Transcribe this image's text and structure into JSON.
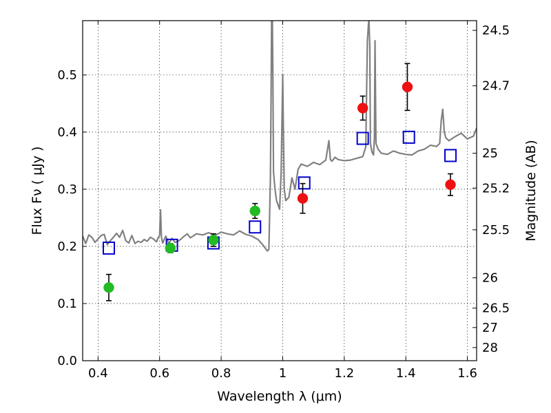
{
  "chart_data": {
    "type": "scatter",
    "xlabel": "Wavelength  λ (μm)",
    "ylabel": "Flux  Fν  ( μJy )",
    "ylabel_right": "Magnitude (AB)",
    "xlim": [
      0.35,
      1.63
    ],
    "ylim": [
      0.0,
      0.595
    ],
    "grid": true,
    "x_ticks": [
      0.4,
      0.6,
      0.8,
      1.0,
      1.2,
      1.4,
      1.6
    ],
    "x_tick_labels": [
      "0.4",
      "0.6",
      "0.8",
      "1",
      "1.2",
      "1.4",
      "1.6"
    ],
    "y_ticks": [
      0.0,
      0.1,
      0.2,
      0.3,
      0.4,
      0.5
    ],
    "y_tick_labels": [
      "0.0",
      "0.1",
      "0.2",
      "0.3",
      "0.4",
      "0.5"
    ],
    "right_ticks": [
      {
        "label": "24.5",
        "flux": 0.578
      },
      {
        "label": "24.7",
        "flux": 0.481
      },
      {
        "label": "25",
        "flux": 0.363
      },
      {
        "label": "25.2",
        "flux": 0.302
      },
      {
        "label": "25.5",
        "flux": 0.229
      },
      {
        "label": "26",
        "flux": 0.145
      },
      {
        "label": "26.5",
        "flux": 0.092
      },
      {
        "label": "27",
        "flux": 0.058
      },
      {
        "label": "28",
        "flux": 0.023
      }
    ],
    "series": [
      {
        "marker": "square-open",
        "color": "#0000cc",
        "x": [
          0.435,
          0.64,
          0.775,
          0.91,
          1.07,
          1.26,
          1.41,
          1.545
        ],
        "y": [
          0.197,
          0.202,
          0.206,
          0.234,
          0.311,
          0.389,
          0.391,
          0.359
        ]
      },
      {
        "marker": "circle",
        "color": "#22bb22",
        "x": [
          0.435,
          0.635,
          0.775,
          0.91
        ],
        "y": [
          0.128,
          0.197,
          0.211,
          0.262
        ],
        "err": [
          0.023,
          0.008,
          0.011,
          0.013
        ]
      },
      {
        "marker": "circle",
        "color": "#ee1111",
        "x": [
          1.065,
          1.26,
          1.405,
          1.545
        ],
        "y": [
          0.284,
          0.442,
          0.479,
          0.308
        ],
        "err": [
          0.026,
          0.021,
          0.041,
          0.019
        ]
      },
      {
        "type": "line",
        "color": "#808080",
        "x": [
          0.35,
          0.36,
          0.37,
          0.38,
          0.39,
          0.4,
          0.41,
          0.42,
          0.43,
          0.44,
          0.45,
          0.46,
          0.47,
          0.48,
          0.49,
          0.5,
          0.51,
          0.52,
          0.53,
          0.54,
          0.55,
          0.56,
          0.57,
          0.58,
          0.59,
          0.595,
          0.6,
          0.603,
          0.606,
          0.61,
          0.62,
          0.63,
          0.64,
          0.65,
          0.66,
          0.67,
          0.68,
          0.69,
          0.7,
          0.72,
          0.74,
          0.76,
          0.78,
          0.8,
          0.82,
          0.84,
          0.86,
          0.88,
          0.9,
          0.92,
          0.935,
          0.95,
          0.955,
          0.96,
          0.962,
          0.964,
          0.966,
          0.968,
          0.97,
          0.975,
          0.98,
          0.99,
          0.995,
          1.0,
          1.002,
          1.005,
          1.01,
          1.02,
          1.03,
          1.04,
          1.05,
          1.06,
          1.08,
          1.1,
          1.12,
          1.14,
          1.15,
          1.155,
          1.16,
          1.17,
          1.18,
          1.2,
          1.22,
          1.24,
          1.26,
          1.27,
          1.275,
          1.28,
          1.283,
          1.285,
          1.29,
          1.295,
          1.298,
          1.3,
          1.303,
          1.31,
          1.32,
          1.34,
          1.36,
          1.38,
          1.4,
          1.42,
          1.44,
          1.46,
          1.48,
          1.5,
          1.51,
          1.515,
          1.52,
          1.525,
          1.53,
          1.54,
          1.56,
          1.58,
          1.6,
          1.62,
          1.63
        ],
        "y": [
          0.218,
          0.205,
          0.22,
          0.216,
          0.207,
          0.213,
          0.219,
          0.221,
          0.203,
          0.21,
          0.216,
          0.223,
          0.216,
          0.228,
          0.21,
          0.206,
          0.219,
          0.205,
          0.209,
          0.207,
          0.212,
          0.209,
          0.216,
          0.213,
          0.208,
          0.215,
          0.219,
          0.264,
          0.216,
          0.206,
          0.218,
          0.205,
          0.214,
          0.207,
          0.209,
          0.213,
          0.218,
          0.222,
          0.215,
          0.222,
          0.22,
          0.224,
          0.219,
          0.225,
          0.222,
          0.22,
          0.227,
          0.221,
          0.218,
          0.212,
          0.203,
          0.192,
          0.195,
          0.32,
          0.45,
          0.61,
          0.62,
          0.5,
          0.33,
          0.3,
          0.28,
          0.265,
          0.33,
          0.5,
          0.41,
          0.3,
          0.28,
          0.286,
          0.32,
          0.3,
          0.335,
          0.344,
          0.34,
          0.347,
          0.343,
          0.351,
          0.385,
          0.352,
          0.349,
          0.356,
          0.352,
          0.35,
          0.351,
          0.354,
          0.357,
          0.374,
          0.56,
          0.6,
          0.55,
          0.38,
          0.365,
          0.36,
          0.39,
          0.56,
          0.38,
          0.37,
          0.363,
          0.361,
          0.367,
          0.363,
          0.361,
          0.36,
          0.367,
          0.37,
          0.377,
          0.375,
          0.38,
          0.42,
          0.44,
          0.4,
          0.39,
          0.385,
          0.392,
          0.398,
          0.388,
          0.393,
          0.407
        ]
      }
    ]
  }
}
